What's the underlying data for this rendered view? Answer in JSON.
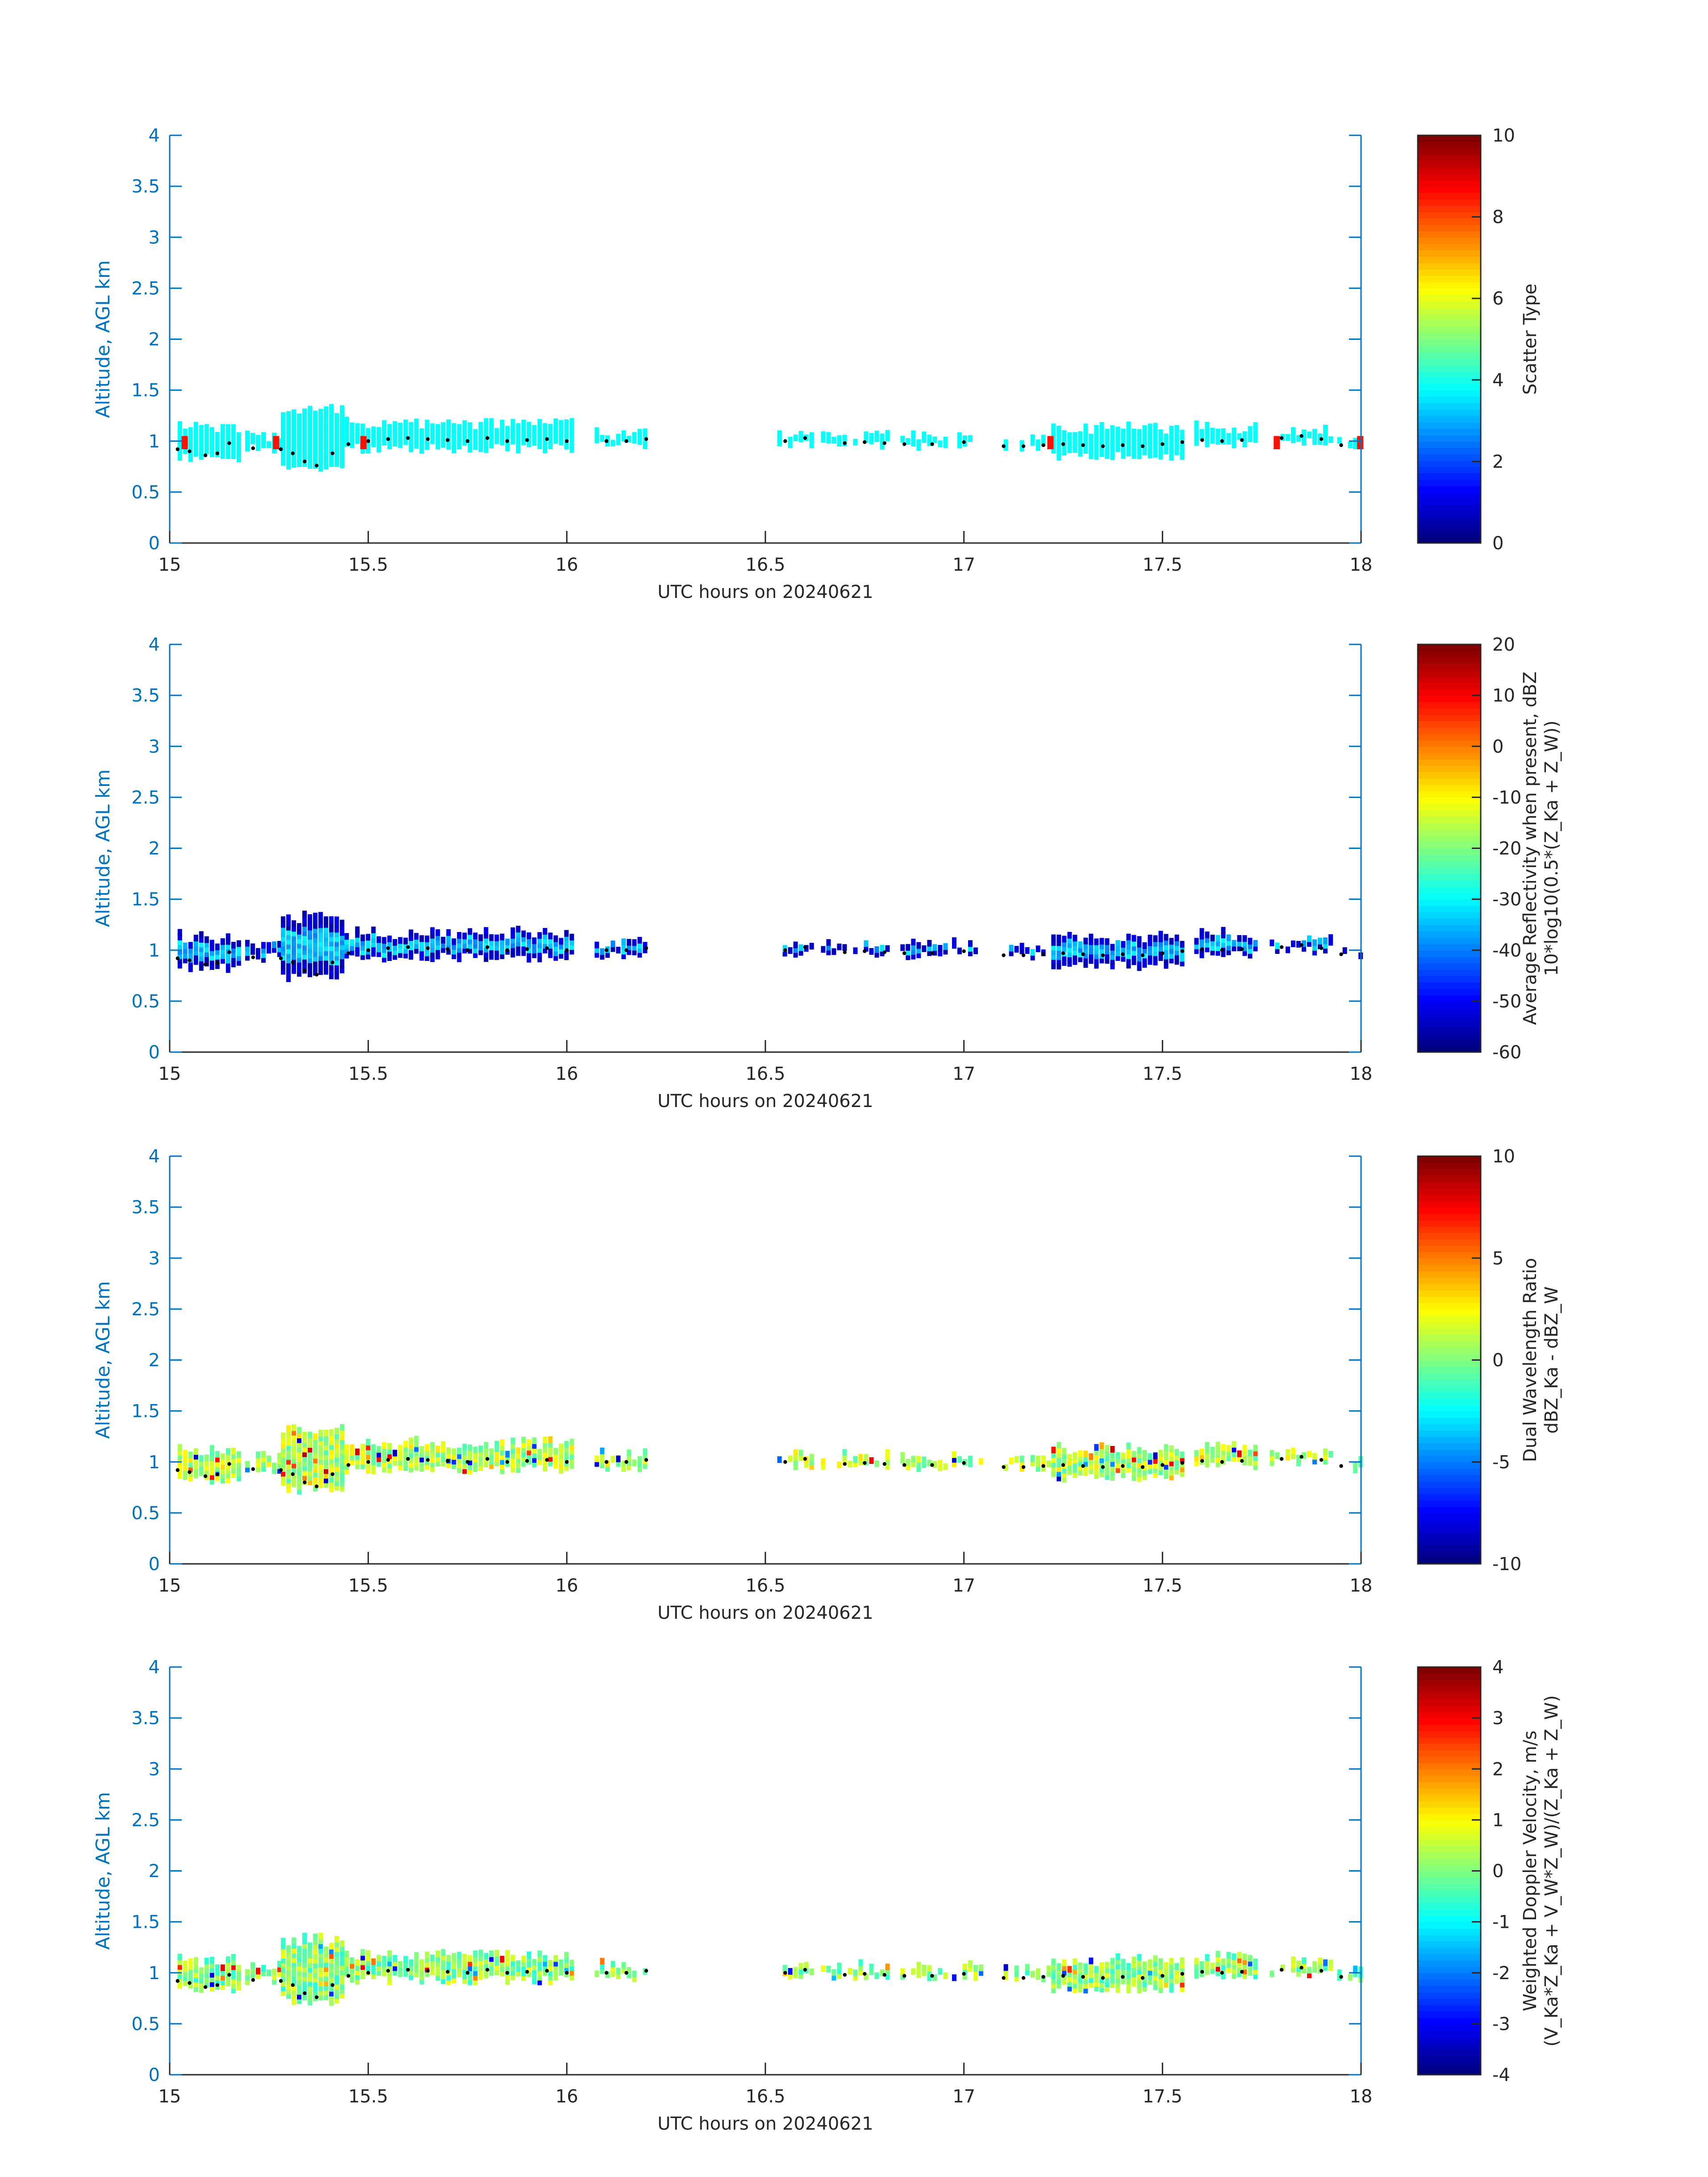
{
  "chart_data": [
    {
      "type": "heatmap",
      "xlabel": "UTC hours on 20240621",
      "ylabel": "Altitude, AGL km",
      "xlim": [
        15,
        18
      ],
      "ylim": [
        0,
        4
      ],
      "xticks": [
        "15",
        "15.5",
        "16",
        "16.5",
        "17",
        "17.5",
        "18"
      ],
      "yticks": [
        "0",
        "0.5",
        "1",
        "1.5",
        "2",
        "2.5",
        "3",
        "3.5",
        "4"
      ],
      "colorbar": {
        "lines": [
          "Scatter Type"
        ],
        "lim": [
          0,
          10
        ],
        "ticks": [
          "0",
          "2",
          "4",
          "6",
          "8",
          "10"
        ]
      },
      "dominant_value": 3.8,
      "highlight_value": 8.6,
      "highlight_times": [
        15.03,
        15.26,
        15.48,
        17.21,
        17.78,
        17.99
      ]
    },
    {
      "type": "heatmap",
      "xlabel": "UTC hours on 20240621",
      "ylabel": "Altitude, AGL km",
      "xlim": [
        15,
        18
      ],
      "ylim": [
        0,
        4
      ],
      "xticks": [
        "15",
        "15.5",
        "16",
        "16.5",
        "17",
        "17.5",
        "18"
      ],
      "yticks": [
        "0",
        "0.5",
        "1",
        "1.5",
        "2",
        "2.5",
        "3",
        "3.5",
        "4"
      ],
      "colorbar": {
        "lines": [
          "Average Reflectivity when present, dBZ",
          "10*log10(0.5*(Z_Ka + Z_W))"
        ],
        "lim": [
          -60,
          20
        ],
        "ticks": [
          "-60",
          "-50",
          "-40",
          "-30",
          "-20",
          "-10",
          "0",
          "10",
          "20"
        ]
      },
      "edge_value": -57,
      "core_value": -35
    },
    {
      "type": "heatmap",
      "xlabel": "UTC hours on 20240621",
      "ylabel": "Altitude, AGL km",
      "xlim": [
        15,
        18
      ],
      "ylim": [
        0,
        4
      ],
      "xticks": [
        "15",
        "15.5",
        "16",
        "16.5",
        "17",
        "17.5",
        "18"
      ],
      "yticks": [
        "0",
        "0.5",
        "1",
        "1.5",
        "2",
        "2.5",
        "3",
        "3.5",
        "4"
      ],
      "colorbar": {
        "lines": [
          "Dual Wavelength Ratio",
          "dBZ_Ka - dBZ_W"
        ],
        "lim": [
          -10,
          10
        ],
        "ticks": [
          "-10",
          "-5",
          "0",
          "5",
          "10"
        ]
      },
      "typical_value": 1,
      "range_seen": [
        -9,
        9
      ]
    },
    {
      "type": "heatmap",
      "xlabel": "UTC hours on 20240621",
      "ylabel": "Altitude, AGL km",
      "xlim": [
        15,
        18
      ],
      "ylim": [
        0,
        4
      ],
      "xticks": [
        "15",
        "15.5",
        "16",
        "16.5",
        "17",
        "17.5",
        "18"
      ],
      "yticks": [
        "0",
        "0.5",
        "1",
        "1.5",
        "2",
        "2.5",
        "3",
        "3.5",
        "4"
      ],
      "colorbar": {
        "lines": [
          "Weighted Doppler Velocity, m/s",
          "(V_Ka*Z_Ka + V_W*Z_W)/(Z_Ka + Z_W)"
        ],
        "lim": [
          -4,
          4
        ],
        "ticks": [
          "-4",
          "-3",
          "-2",
          "-1",
          "0",
          "1",
          "2",
          "3",
          "4"
        ]
      },
      "typical_value": 0.1,
      "range_seen": [
        -3.5,
        3.2
      ]
    }
  ],
  "cloud_base_km": [
    {
      "t": 15.02,
      "z": 0.92
    },
    {
      "t": 15.05,
      "z": 0.9
    },
    {
      "t": 15.09,
      "z": 0.86
    },
    {
      "t": 15.12,
      "z": 0.88
    },
    {
      "t": 15.15,
      "z": 0.98
    },
    {
      "t": 15.21,
      "z": 0.93
    },
    {
      "t": 15.28,
      "z": 0.92
    },
    {
      "t": 15.31,
      "z": 0.88
    },
    {
      "t": 15.34,
      "z": 0.8
    },
    {
      "t": 15.37,
      "z": 0.76
    },
    {
      "t": 15.41,
      "z": 0.88
    },
    {
      "t": 15.45,
      "z": 0.97
    },
    {
      "t": 15.5,
      "z": 1.0
    },
    {
      "t": 15.55,
      "z": 1.02
    },
    {
      "t": 15.6,
      "z": 1.03
    },
    {
      "t": 15.65,
      "z": 1.02
    },
    {
      "t": 15.7,
      "z": 1.01
    },
    {
      "t": 15.75,
      "z": 1.0
    },
    {
      "t": 15.8,
      "z": 1.03
    },
    {
      "t": 15.85,
      "z": 1.0
    },
    {
      "t": 15.9,
      "z": 1.01
    },
    {
      "t": 15.95,
      "z": 1.02
    },
    {
      "t": 16.0,
      "z": 1.0
    },
    {
      "t": 16.1,
      "z": 1.0
    },
    {
      "t": 16.15,
      "z": 1.0
    },
    {
      "t": 16.2,
      "z": 1.02
    },
    {
      "t": 16.55,
      "z": 1.0
    },
    {
      "t": 16.6,
      "z": 1.03
    },
    {
      "t": 16.7,
      "z": 0.98
    },
    {
      "t": 16.75,
      "z": 0.99
    },
    {
      "t": 16.8,
      "z": 0.98
    },
    {
      "t": 16.85,
      "z": 0.97
    },
    {
      "t": 16.92,
      "z": 0.97
    },
    {
      "t": 17.0,
      "z": 0.99
    },
    {
      "t": 17.1,
      "z": 0.95
    },
    {
      "t": 17.15,
      "z": 0.95
    },
    {
      "t": 17.2,
      "z": 0.96
    },
    {
      "t": 17.25,
      "z": 0.97
    },
    {
      "t": 17.3,
      "z": 0.96
    },
    {
      "t": 17.35,
      "z": 0.95
    },
    {
      "t": 17.4,
      "z": 0.96
    },
    {
      "t": 17.45,
      "z": 0.95
    },
    {
      "t": 17.5,
      "z": 0.97
    },
    {
      "t": 17.55,
      "z": 0.99
    },
    {
      "t": 17.6,
      "z": 1.01
    },
    {
      "t": 17.65,
      "z": 1.0
    },
    {
      "t": 17.7,
      "z": 1.01
    },
    {
      "t": 17.8,
      "z": 1.03
    },
    {
      "t": 17.85,
      "z": 1.05
    },
    {
      "t": 17.9,
      "z": 1.02
    },
    {
      "t": 17.95,
      "z": 0.96
    }
  ],
  "cloud_segments": [
    {
      "t0": 15.02,
      "t1": 15.18,
      "bot": 0.78,
      "top": 1.15
    },
    {
      "t0": 15.19,
      "t1": 15.28,
      "bot": 0.88,
      "top": 1.08
    },
    {
      "t0": 15.28,
      "t1": 15.44,
      "bot": 0.68,
      "top": 1.35
    },
    {
      "t0": 15.44,
      "t1": 16.02,
      "bot": 0.88,
      "top": 1.2
    },
    {
      "t0": 16.07,
      "t1": 16.2,
      "bot": 0.9,
      "top": 1.1
    },
    {
      "t0": 16.53,
      "t1": 16.62,
      "bot": 0.92,
      "top": 1.1
    },
    {
      "t0": 16.64,
      "t1": 16.81,
      "bot": 0.92,
      "top": 1.08
    },
    {
      "t0": 16.84,
      "t1": 16.96,
      "bot": 0.9,
      "top": 1.07
    },
    {
      "t0": 16.97,
      "t1": 17.04,
      "bot": 0.92,
      "top": 1.07
    },
    {
      "t0": 17.1,
      "t1": 17.22,
      "bot": 0.9,
      "top": 1.05
    },
    {
      "t0": 17.22,
      "t1": 17.55,
      "bot": 0.8,
      "top": 1.15
    },
    {
      "t0": 17.58,
      "t1": 17.74,
      "bot": 0.92,
      "top": 1.17
    },
    {
      "t0": 17.77,
      "t1": 17.8,
      "bot": 0.95,
      "top": 1.07
    },
    {
      "t0": 17.81,
      "t1": 17.93,
      "bot": 0.95,
      "top": 1.12
    },
    {
      "t0": 17.94,
      "t1": 17.97,
      "bot": 0.92,
      "top": 1.02
    },
    {
      "t0": 17.98,
      "t1": 18.0,
      "bot": 0.88,
      "top": 1.05
    }
  ]
}
